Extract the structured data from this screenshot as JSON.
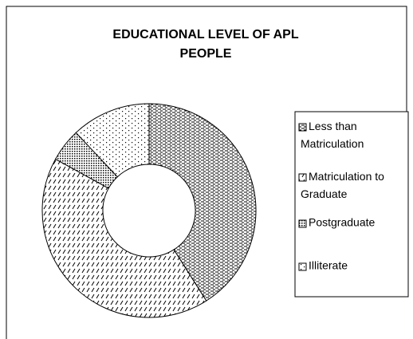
{
  "chart_data": {
    "type": "donut",
    "title": "EDUCATIONAL LEVEL OF APL PEOPLE",
    "categories": [
      "Less than Matriculation",
      "Matriculation to Graduate",
      "Postgraduate",
      "Illiterate"
    ],
    "values": [
      41,
      42,
      5,
      12
    ]
  }
}
